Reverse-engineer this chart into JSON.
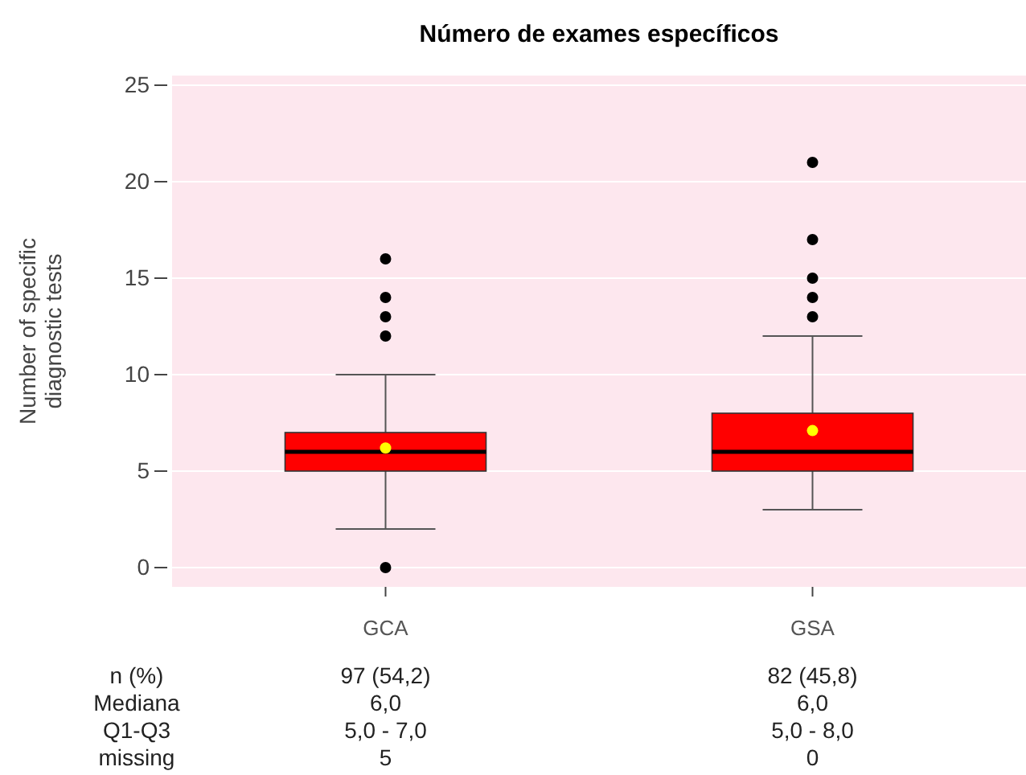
{
  "chart_data": {
    "type": "box",
    "title": "Número de exames específicos",
    "ylabel": "Number of specific\ndiagnostic tests",
    "categories": [
      "GCA",
      "GSA"
    ],
    "color": "#ff0000",
    "boxes": [
      {
        "low": 2,
        "q1": 5,
        "median": 6,
        "q3": 7,
        "high": 10,
        "mean": 6.2,
        "outliers": [
          0,
          12,
          13,
          14,
          16
        ]
      },
      {
        "low": 3,
        "q1": 5,
        "median": 6,
        "q3": 8,
        "high": 12,
        "mean": 7.1,
        "outliers": [
          13,
          14,
          15,
          17,
          21
        ]
      }
    ],
    "ylim": [
      -1,
      25.5
    ],
    "yticks": [
      0,
      5,
      10,
      15,
      20,
      25
    ],
    "grid": "y",
    "annotations": [
      "n (%)",
      "97 (54,2)",
      "82 (45,8)",
      "Mediana",
      "6,0",
      "6,0",
      "Q1-Q3",
      "5,0  -  7,0",
      "5,0  -  8,0",
      "missing",
      "5",
      "0"
    ]
  }
}
